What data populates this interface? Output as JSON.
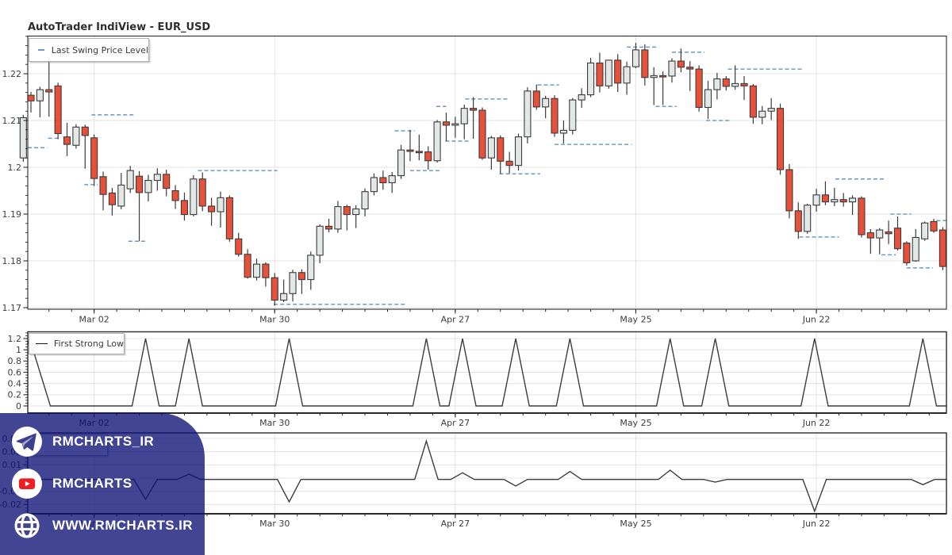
{
  "page": {
    "title": "AutoTrader IndiView - EUR_USD"
  },
  "watermark": {
    "background": "rgba(13,17,117,0.78)",
    "items": [
      {
        "icon": "telegram-icon",
        "label": "RMCHARTS_IR"
      },
      {
        "icon": "youtube-icon",
        "label": "RMCHARTS"
      },
      {
        "icon": "globe-icon",
        "label": "WWW.RMCHARTS.IR"
      }
    ]
  },
  "chart_data": [
    {
      "type": "candlestick",
      "panel": "price",
      "title": "AutoTrader IndiView - EUR_USD",
      "legend": "Last Swing Price Level",
      "symbol": "EUR_USD",
      "ylim": [
        1.1695,
        1.2285
      ],
      "grid": true,
      "legend_position": "top-left",
      "x_ticks": [
        {
          "idx": 7,
          "label": "Mar 02"
        },
        {
          "idx": 27,
          "label": "Mar 30"
        },
        {
          "idx": 47,
          "label": "Apr 27"
        },
        {
          "idx": 67,
          "label": "May 25"
        },
        {
          "idx": 87,
          "label": "Jun 22"
        }
      ],
      "y_ticks": [
        {
          "v": 1.17,
          "label": "1.17"
        },
        {
          "v": 1.18,
          "label": "1.18"
        },
        {
          "v": 1.19,
          "label": "1.19"
        },
        {
          "v": 1.2,
          "label": "1.2"
        },
        {
          "v": 1.21,
          "label": "1.21"
        },
        {
          "v": 1.22,
          "label": "1.22"
        }
      ],
      "colors": {
        "up_fill": "#e3e8e6",
        "down_fill": "#e8503a",
        "outline": "#3b3b3b",
        "swing_level": "#6b9ac8"
      },
      "left_partial_candle": {
        "idx": -0.85,
        "ohlc": [
          1.202,
          1.2112,
          1.2012,
          1.2106
        ]
      },
      "candles": [
        [
          1.2154,
          1.2161,
          1.2117,
          1.2142
        ],
        [
          1.2142,
          1.2172,
          1.2107,
          1.2166
        ],
        [
          1.2166,
          1.2235,
          1.2108,
          1.2161
        ],
        [
          1.2174,
          1.2181,
          1.206,
          1.2072
        ],
        [
          1.2065,
          1.2095,
          1.2024,
          1.2049
        ],
        [
          1.2047,
          1.2092,
          1.204,
          1.2086
        ],
        [
          1.2086,
          1.2091,
          1.1997,
          1.2068
        ],
        [
          1.2063,
          1.207,
          1.196,
          1.1976
        ],
        [
          1.198,
          1.1991,
          1.1908,
          1.1942
        ],
        [
          1.1945,
          1.1956,
          1.1897,
          1.192
        ],
        [
          1.1917,
          1.1988,
          1.191,
          1.1962
        ],
        [
          1.1954,
          1.2003,
          1.1945,
          1.1993
        ],
        [
          1.1981,
          1.1992,
          1.1842,
          1.1946
        ],
        [
          1.1946,
          1.1984,
          1.1927,
          1.1972
        ],
        [
          1.1972,
          1.1998,
          1.195,
          1.1985
        ],
        [
          1.1985,
          1.1995,
          1.1938,
          1.1955
        ],
        [
          1.195,
          1.1962,
          1.1911,
          1.1929
        ],
        [
          1.1929,
          1.1946,
          1.1886,
          1.1899
        ],
        [
          1.1899,
          1.1983,
          1.1895,
          1.1975
        ],
        [
          1.1975,
          1.1989,
          1.1906,
          1.1917
        ],
        [
          1.1917,
          1.1935,
          1.1875,
          1.1905
        ],
        [
          1.1905,
          1.1948,
          1.1871,
          1.1935
        ],
        [
          1.1935,
          1.194,
          1.1841,
          1.1847
        ],
        [
          1.1847,
          1.186,
          1.1809,
          1.1814
        ],
        [
          1.1814,
          1.1825,
          1.1762,
          1.1765
        ],
        [
          1.1765,
          1.1805,
          1.1758,
          1.1793
        ],
        [
          1.1793,
          1.1797,
          1.1745,
          1.1764
        ],
        [
          1.1764,
          1.1774,
          1.1704,
          1.1716
        ],
        [
          1.1716,
          1.176,
          1.1712,
          1.173
        ],
        [
          1.173,
          1.1781,
          1.1713,
          1.1775
        ],
        [
          1.1775,
          1.1782,
          1.1729,
          1.176
        ],
        [
          1.176,
          1.182,
          1.1738,
          1.1812
        ],
        [
          1.1812,
          1.1878,
          1.1795,
          1.1874
        ],
        [
          1.1874,
          1.189,
          1.1861,
          1.1868
        ],
        [
          1.1868,
          1.1928,
          1.186,
          1.1916
        ],
        [
          1.1916,
          1.192,
          1.1865,
          1.1899
        ],
        [
          1.1899,
          1.1919,
          1.187,
          1.1911
        ],
        [
          1.1911,
          1.1955,
          1.1895,
          1.1948
        ],
        [
          1.1948,
          1.1987,
          1.194,
          1.1978
        ],
        [
          1.1978,
          1.1993,
          1.1952,
          1.1967
        ],
        [
          1.1967,
          1.199,
          1.1945,
          1.1982
        ],
        [
          1.1982,
          1.2048,
          1.1975,
          1.2037
        ],
        [
          1.2037,
          1.208,
          1.2013,
          1.2034
        ],
        [
          1.2034,
          1.207,
          1.2015,
          1.2033
        ],
        [
          1.2033,
          1.2045,
          1.1995,
          1.2014
        ],
        [
          1.2014,
          1.2101,
          1.201,
          1.2097
        ],
        [
          1.2097,
          1.2117,
          1.2056,
          1.209
        ],
        [
          1.209,
          1.2108,
          1.2063,
          1.2093
        ],
        [
          1.2093,
          1.2134,
          1.206,
          1.2126
        ],
        [
          1.2126,
          1.215,
          1.2061,
          1.2122
        ],
        [
          1.2122,
          1.2128,
          1.2016,
          1.202
        ],
        [
          1.202,
          1.2067,
          1.1995,
          1.2063
        ],
        [
          1.2063,
          1.2068,
          1.1986,
          1.2013
        ],
        [
          1.2013,
          1.2033,
          1.1987,
          1.2004
        ],
        [
          1.2004,
          1.2072,
          1.1993,
          1.2065
        ],
        [
          1.2065,
          1.2171,
          1.2051,
          1.2163
        ],
        [
          1.2163,
          1.2177,
          1.2123,
          1.2129
        ],
        [
          1.2129,
          1.2153,
          1.2105,
          1.2147
        ],
        [
          1.2147,
          1.2154,
          1.2065,
          1.2073
        ],
        [
          1.2073,
          1.21,
          1.2051,
          1.2079
        ],
        [
          1.2079,
          1.2148,
          1.207,
          1.2144
        ],
        [
          1.2144,
          1.2169,
          1.2127,
          1.2155
        ],
        [
          1.2155,
          1.2234,
          1.215,
          1.2223
        ],
        [
          1.2223,
          1.2245,
          1.216,
          1.2174
        ],
        [
          1.2174,
          1.223,
          1.2168,
          1.2229
        ],
        [
          1.2229,
          1.2242,
          1.2161,
          1.218
        ],
        [
          1.218,
          1.2226,
          1.2155,
          1.2215
        ],
        [
          1.2215,
          1.2266,
          1.2212,
          1.2251
        ],
        [
          1.2251,
          1.2263,
          1.2175,
          1.2192
        ],
        [
          1.2192,
          1.2214,
          1.2133,
          1.2196
        ],
        [
          1.2196,
          1.2205,
          1.2133,
          1.2195
        ],
        [
          1.2195,
          1.2233,
          1.2181,
          1.2227
        ],
        [
          1.2227,
          1.2254,
          1.2203,
          1.2214
        ],
        [
          1.2214,
          1.2227,
          1.2163,
          1.221
        ],
        [
          1.221,
          1.2218,
          1.2119,
          1.2128
        ],
        [
          1.2128,
          1.2185,
          1.2103,
          1.2166
        ],
        [
          1.2166,
          1.2202,
          1.2145,
          1.2189
        ],
        [
          1.2189,
          1.2195,
          1.2164,
          1.2173
        ],
        [
          1.2173,
          1.2218,
          1.2166,
          1.2179
        ],
        [
          1.2179,
          1.2195,
          1.2144,
          1.2174
        ],
        [
          1.2174,
          1.2178,
          1.2093,
          1.2107
        ],
        [
          1.2107,
          1.2131,
          1.2092,
          1.212
        ],
        [
          1.212,
          1.2148,
          1.2101,
          1.2126
        ],
        [
          1.2126,
          1.2136,
          1.1984,
          1.1995
        ],
        [
          1.1995,
          1.2007,
          1.1891,
          1.1907
        ],
        [
          1.1907,
          1.1925,
          1.1847,
          1.1863
        ],
        [
          1.1863,
          1.1922,
          1.1858,
          1.1919
        ],
        [
          1.1919,
          1.1954,
          1.1905,
          1.1941
        ],
        [
          1.1941,
          1.197,
          1.1919,
          1.1926
        ],
        [
          1.1926,
          1.1956,
          1.1917,
          1.1931
        ],
        [
          1.1931,
          1.1945,
          1.1916,
          1.1926
        ],
        [
          1.1926,
          1.194,
          1.1898,
          1.1934
        ],
        [
          1.1934,
          1.1938,
          1.185,
          1.1856
        ],
        [
          1.186,
          1.1868,
          1.1815,
          1.1849
        ],
        [
          1.1849,
          1.187,
          1.1814,
          1.1866
        ],
        [
          1.1862,
          1.1886,
          1.1836,
          1.1858
        ],
        [
          1.187,
          1.1895,
          1.1822,
          1.1826
        ],
        [
          1.1838,
          1.1842,
          1.179,
          1.1796
        ],
        [
          1.18,
          1.1868,
          1.1798,
          1.185
        ],
        [
          1.1847,
          1.1884,
          1.1843,
          1.1881
        ],
        [
          1.1884,
          1.189,
          1.186,
          1.1864
        ],
        [
          1.1866,
          1.1872,
          1.178,
          1.1788
        ]
      ],
      "swing_levels": [
        [
          -0.4,
          1.8,
          1.2042
        ],
        [
          1.9,
          3.3,
          1.2062
        ],
        [
          6.7,
          11.5,
          1.2112
        ],
        [
          5.9,
          7.4,
          1.1963
        ],
        [
          10.8,
          12.8,
          1.1842
        ],
        [
          18.5,
          27.3,
          1.1993
        ],
        [
          26.9,
          41.4,
          1.1707
        ],
        [
          40.3,
          42.5,
          1.2078
        ],
        [
          42.0,
          45.5,
          1.1993
        ],
        [
          44.9,
          46.0,
          1.213
        ],
        [
          48.1,
          52.8,
          1.2146
        ],
        [
          45.9,
          48.7,
          1.2056
        ],
        [
          56.1,
          58.5,
          1.2176
        ],
        [
          58.0,
          66.5,
          1.2049
        ],
        [
          51.9,
          56.4,
          1.1986
        ],
        [
          66.0,
          69.5,
          1.2257
        ],
        [
          71.0,
          74.6,
          1.2246
        ],
        [
          69.2,
          71.5,
          1.213
        ],
        [
          77.2,
          85.5,
          1.221
        ],
        [
          74.8,
          77.4,
          1.21
        ],
        [
          89.1,
          94.7,
          1.1975
        ],
        [
          85.1,
          89.5,
          1.1851
        ],
        [
          95.2,
          97.5,
          1.19
        ],
        [
          94.2,
          95.8,
          1.1813
        ],
        [
          97.0,
          99.9,
          1.1785
        ],
        [
          100.3,
          101.6,
          1.1886
        ]
      ]
    },
    {
      "type": "line",
      "panel": "first-strong-low",
      "legend": "First Strong Low",
      "line_color": "#3d3d3d",
      "baseline": 0,
      "spike_value": 1.2,
      "ylim": [
        0,
        1.32
      ],
      "x_ticks": [
        {
          "idx": 7,
          "label": "Mar 02"
        },
        {
          "idx": 27,
          "label": "Mar 30"
        },
        {
          "idx": 47,
          "label": "Apr 27"
        },
        {
          "idx": 67,
          "label": "May 25"
        },
        {
          "idx": 87,
          "label": "Jun 22"
        }
      ],
      "y_ticks": [
        {
          "v": 0,
          "label": "0"
        },
        {
          "v": 0.2,
          "label": "0.2"
        },
        {
          "v": 0.4,
          "label": "0.4"
        },
        {
          "v": 0.6,
          "label": "0.6"
        },
        {
          "v": 0.8,
          "label": "0.8"
        },
        {
          "v": 1,
          "label": "1"
        },
        {
          "v": 1.2,
          "label": "1.2"
        }
      ],
      "spikes": [
        {
          "i": -0.15,
          "w": 2.3
        },
        {
          "i": 12.7,
          "w": 1.5
        },
        {
          "i": 17.5,
          "w": 1.5
        },
        {
          "i": 28.6,
          "w": 1.5
        },
        {
          "i": 43.8,
          "w": 1.5
        },
        {
          "i": 47.8,
          "w": 1.5
        },
        {
          "i": 53.7,
          "w": 1.5
        },
        {
          "i": 59.7,
          "w": 1.5
        },
        {
          "i": 70.8,
          "w": 1.5
        },
        {
          "i": 75.8,
          "w": 1.5
        },
        {
          "i": 86.8,
          "w": 1.5
        },
        {
          "i": 98.8,
          "w": 1.5
        }
      ]
    },
    {
      "type": "line",
      "panel": "oscillator",
      "legend": "",
      "line_color": "#3d3d3d",
      "baseline": -0.001,
      "ylim": [
        -0.026,
        0.034
      ],
      "x_ticks": [
        {
          "idx": 7,
          "label": "Mar 02"
        },
        {
          "idx": 27,
          "label": "Mar 30"
        },
        {
          "idx": 47,
          "label": "Apr 27"
        },
        {
          "idx": 67,
          "label": "May 25"
        },
        {
          "idx": 87,
          "label": "Jun 22"
        }
      ],
      "y_ticks": [
        {
          "v": -0.02,
          "label": "-0.02"
        },
        {
          "v": -0.01,
          "label": "-0.01"
        },
        {
          "v": 0,
          "label": "0"
        },
        {
          "v": 0.01,
          "label": "0.01"
        },
        {
          "v": 0.02,
          "label": "0.02"
        },
        {
          "v": 0.03,
          "label": "0.03"
        }
      ],
      "events": [
        [
          12.7,
          -0.016
        ],
        [
          17.5,
          0.003
        ],
        [
          28.6,
          -0.018
        ],
        [
          43.8,
          0.028
        ],
        [
          47.8,
          0.004
        ],
        [
          53.7,
          -0.006
        ],
        [
          59.7,
          0.005
        ],
        [
          70.8,
          0.006
        ],
        [
          75.8,
          -0.003
        ],
        [
          86.8,
          -0.025
        ],
        [
          98.8,
          -0.005
        ]
      ]
    }
  ]
}
